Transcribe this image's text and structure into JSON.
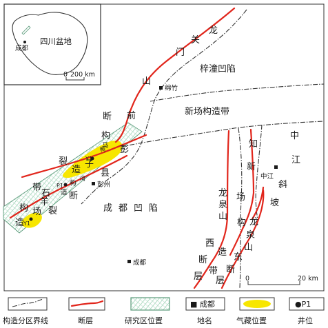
{
  "map": {
    "regions": {
      "longmen_1": "关",
      "longmen_2": "龙",
      "longmen_3": "门",
      "longmen_4": "山",
      "zitong": "梓潼凹陷",
      "xinchang": "新场构造带",
      "qian_1": "前",
      "qian_2": "断",
      "qian_3": "构",
      "qian_4": "裂",
      "ymp_1": "造",
      "ymp_2": "带",
      "ymp_3": "鸭",
      "ymp_4": "子",
      "ymp_5": "河",
      "ymp_6": "构",
      "ymp_7": "造",
      "ymp_8": "马",
      "ymp_9": "彭",
      "ymp_10": "县",
      "ymp_11": "断",
      "shiyang_1": "石",
      "shiyang_2": "羊",
      "shiyang_3": "场",
      "shiyang_4": "构",
      "shiyang_5": "造",
      "shiyang_6": "裂",
      "chengdu_depression": "成都凹陷",
      "zhixin_1": "知",
      "zhixin_2": "新",
      "zhixin_3": "场",
      "zhixin_4": "构",
      "zjx_1": "中",
      "zjx_2": "江",
      "zjx_3": "斜",
      "zjx_4": "坡",
      "lqs_w_1": "龙",
      "lqs_w_2": "泉",
      "lqs_w_3": "山",
      "lqs_w_4": "西",
      "lqs_w_5": "断",
      "lqs_w_6": "层",
      "lqs_e_1": "龙",
      "lqs_e_2": "泉",
      "lqs_e_3": "山",
      "lqs_e_4": "东",
      "lqs_e_5": "断",
      "lqs_e_6": "层",
      "zao": "造",
      "dai": "带"
    },
    "places": {
      "mianzhu": "绵竹",
      "pengzhou": "彭州",
      "zhongjiang": "中江",
      "chengdu": "成都"
    },
    "wells": {
      "p1": "P1",
      "y1": "Y1",
      "y2": "Y1"
    },
    "scale": {
      "label": "20 km",
      "zero": "0"
    }
  },
  "inset": {
    "basin_label": "四川盆地",
    "city": "成都",
    "scale_zero": "0",
    "scale_label": "200 km"
  },
  "legend": [
    {
      "key": "boundary",
      "label": "构造分区界线"
    },
    {
      "key": "fault",
      "label": "断层"
    },
    {
      "key": "study_area",
      "label": "研究区位置"
    },
    {
      "key": "place",
      "symbol_text": "■ 成都",
      "label": "地名"
    },
    {
      "key": "gas",
      "label": "气藏位置"
    },
    {
      "key": "well",
      "symbol_text": "●P1",
      "label": "井位"
    }
  ],
  "colors": {
    "fault": "#e1251b",
    "gas": "#f7e600",
    "study_area": "#7fc7a0"
  }
}
